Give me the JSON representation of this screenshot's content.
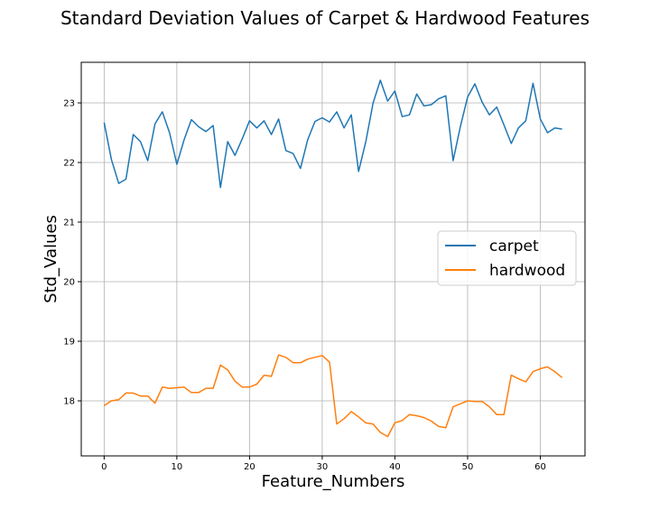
{
  "chart_data": {
    "type": "line",
    "title": "Standard Deviation Values of Carpet & Hardwood Features",
    "xlabel": "Feature_Numbers",
    "ylabel": "Std_Values",
    "xlim": [
      -3.15,
      66.15
    ],
    "ylim": [
      21.05,
      23.35
    ],
    "x_ticks": [
      0,
      10,
      20,
      30,
      40,
      50,
      60
    ],
    "y_ticks": [
      18,
      19,
      20,
      21,
      22,
      23
    ],
    "grid": true,
    "legend_position": "center-right",
    "x": [
      0,
      1,
      2,
      3,
      4,
      5,
      6,
      7,
      8,
      9,
      10,
      11,
      12,
      13,
      14,
      15,
      16,
      17,
      18,
      19,
      20,
      21,
      22,
      23,
      24,
      25,
      26,
      27,
      28,
      29,
      30,
      31,
      32,
      33,
      34,
      35,
      36,
      37,
      38,
      39,
      40,
      41,
      42,
      43,
      44,
      45,
      46,
      47,
      48,
      49,
      50,
      51,
      52,
      53,
      54,
      55,
      56,
      57,
      58,
      59,
      60,
      61,
      62,
      63
    ],
    "series": [
      {
        "name": "carpet",
        "color": "#1f77b4",
        "values": [
          22.67,
          22.05,
          21.65,
          21.72,
          22.47,
          22.35,
          22.03,
          22.65,
          22.85,
          22.5,
          21.97,
          22.38,
          22.72,
          22.6,
          22.52,
          22.62,
          21.58,
          22.35,
          22.12,
          22.4,
          22.7,
          22.58,
          22.7,
          22.47,
          22.73,
          22.2,
          22.15,
          21.9,
          22.38,
          22.69,
          22.75,
          22.68,
          22.85,
          22.58,
          22.8,
          21.85,
          22.35,
          23.0,
          23.38,
          23.03,
          23.2,
          22.77,
          22.8,
          23.15,
          22.95,
          22.97,
          23.07,
          23.12,
          22.03,
          22.6,
          23.1,
          23.32,
          23.01,
          22.8,
          22.93,
          22.63,
          22.32,
          22.58,
          22.7,
          23.33,
          22.73,
          22.5,
          22.58,
          22.56
        ]
      },
      {
        "name": "hardwood",
        "color": "#ff7f0e",
        "values": [
          17.92,
          18.0,
          18.02,
          18.13,
          18.13,
          18.08,
          18.08,
          17.96,
          18.23,
          18.21,
          18.22,
          18.23,
          18.14,
          18.14,
          18.21,
          18.21,
          18.6,
          18.52,
          18.33,
          18.23,
          18.23,
          18.28,
          18.43,
          18.41,
          18.77,
          18.73,
          18.64,
          18.64,
          18.7,
          18.73,
          18.76,
          18.65,
          17.61,
          17.7,
          17.82,
          17.73,
          17.63,
          17.61,
          17.47,
          17.4,
          17.63,
          17.67,
          17.77,
          17.75,
          17.72,
          17.66,
          17.57,
          17.55,
          17.9,
          17.95,
          18.0,
          17.99,
          17.99,
          17.9,
          17.77,
          17.77,
          18.43,
          18.37,
          18.32,
          18.49,
          18.54,
          18.57,
          18.49,
          18.39
        ]
      }
    ]
  }
}
